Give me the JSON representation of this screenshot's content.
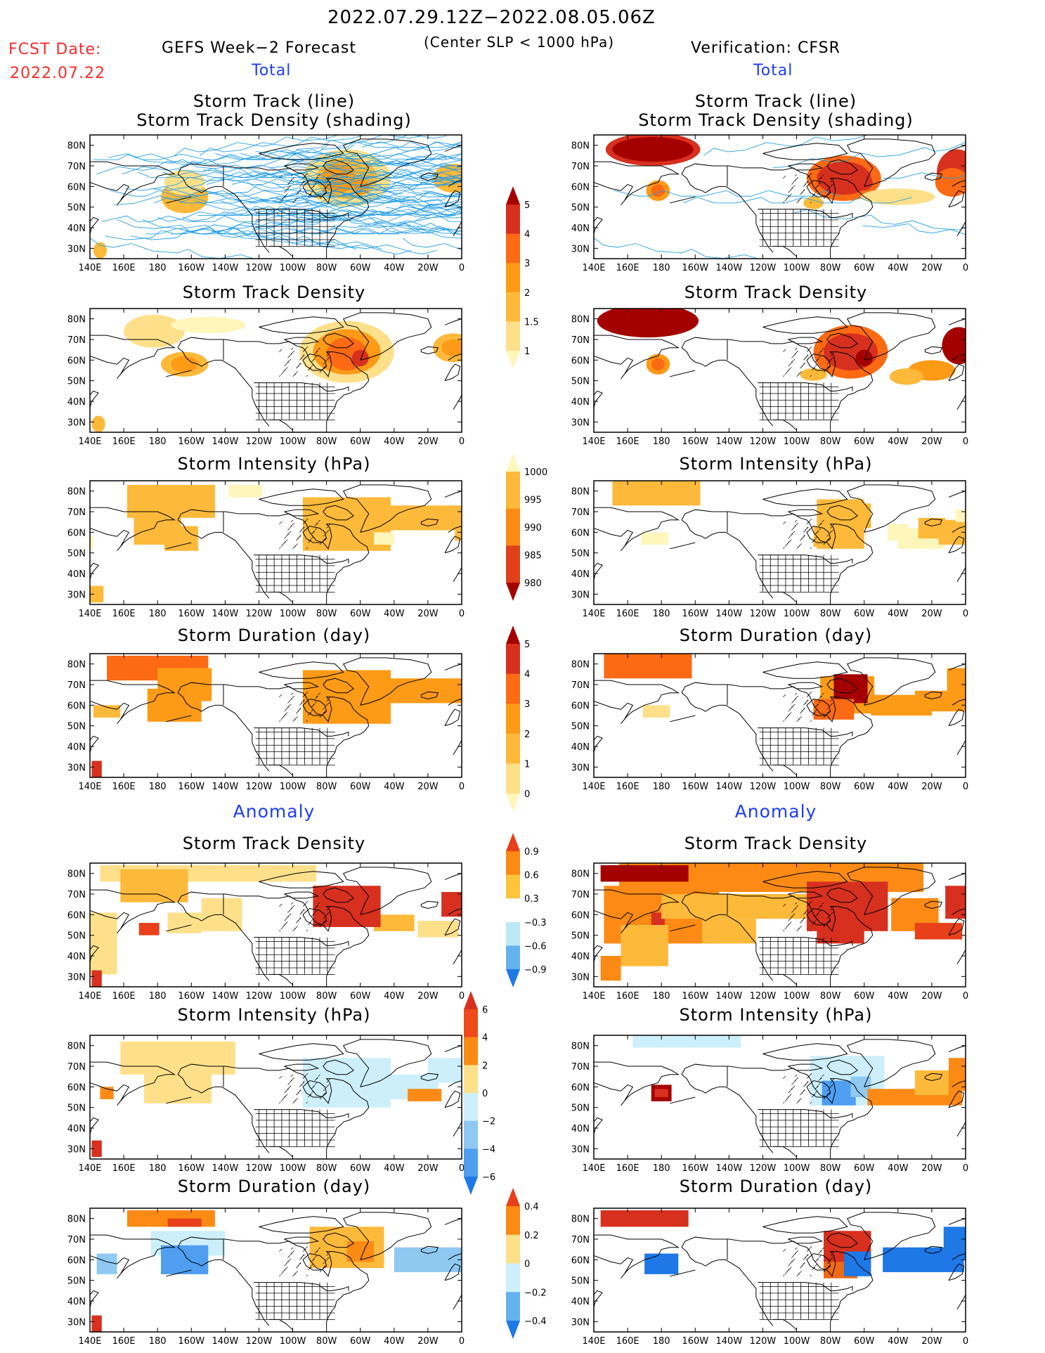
{
  "header": {
    "date_range": "2022.07.29.12Z−2022.08.05.06Z",
    "fcst_label": "FCST Date:",
    "fcst_date": "2022.07.22",
    "forecast_title": "GEFS Week−2 Forecast",
    "criterion": "(Center SLP < 1000 hPa)",
    "verification_title": "Verification: CFSR"
  },
  "columns": {
    "forecast_total": "Total",
    "verification_total": "Total",
    "forecast_anomaly": "Anomaly",
    "verification_anomaly": "Anomaly"
  },
  "panel_titles": {
    "track_line": "Storm Track (line)",
    "track_shading": "Storm Track Density (shading)",
    "density": "Storm Track Density",
    "intensity": "Storm Intensity (hPa)",
    "duration": "Storm Duration (day)"
  },
  "axes": {
    "lat_labels": [
      "80N",
      "70N",
      "60N",
      "50N",
      "40N",
      "30N"
    ],
    "lon_labels": [
      "140E",
      "160E",
      "180",
      "160W",
      "140W",
      "120W",
      "100W",
      "80W",
      "60W",
      "40W",
      "20W",
      "0"
    ]
  },
  "colorbars": [
    {
      "id": "density_total",
      "labels": [
        "5",
        "4",
        "3",
        "2",
        "1.5",
        "1"
      ],
      "colors": [
        "#a50000",
        "#d7301f",
        "#fc6a14",
        "#fd9a16",
        "#fdb93a",
        "#fee08b",
        "#fff6bc"
      ]
    },
    {
      "id": "intensity_total",
      "labels": [
        "1000",
        "995",
        "990",
        "985",
        "980"
      ],
      "colors": [
        "#fff6bc",
        "#fdb93a",
        "#fc8a14",
        "#e0401a",
        "#a50000"
      ]
    },
    {
      "id": "duration_total",
      "labels": [
        "5",
        "4",
        "3",
        "2",
        "1",
        "0"
      ],
      "colors": [
        "#a50000",
        "#d7301f",
        "#fc6a14",
        "#fd9a16",
        "#fdb93a",
        "#fee08b",
        "#fff6bc"
      ]
    },
    {
      "id": "density_anom",
      "labels": [
        "0.9",
        "0.6",
        "0.3",
        "−0.3",
        "−0.6",
        "−0.9"
      ],
      "colors": [
        "#e8401a",
        "#fc8a14",
        "#fdc53a",
        "#ffffff",
        "#bde9f6",
        "#66b2ee",
        "#1e78e6"
      ]
    },
    {
      "id": "intensity_anom",
      "labels": [
        "6",
        "4",
        "2",
        "0",
        "−2",
        "−4",
        "−6"
      ],
      "colors": [
        "#d7301f",
        "#ee4a1a",
        "#fc8a14",
        "#fee08b",
        "#cdeffb",
        "#8fc9f2",
        "#4f9ef0",
        "#1e78e6"
      ]
    },
    {
      "id": "duration_anom",
      "labels": [
        "0.4",
        "0.2",
        "0",
        "−0.2",
        "−0.4"
      ],
      "colors": [
        "#e8401a",
        "#fc8a14",
        "#fee08b",
        "#cdeffb",
        "#66b2ee",
        "#1e78e6"
      ]
    }
  ],
  "palette": {
    "track_line": "#1e9be6",
    "hot": [
      "#fff6bc",
      "#fee08b",
      "#fdb93a",
      "#fd9a16",
      "#fc6a14",
      "#d7301f",
      "#a50000"
    ],
    "cold": [
      "#cdeffb",
      "#8fc9f2",
      "#4f9ef0",
      "#1e78e6"
    ]
  }
}
